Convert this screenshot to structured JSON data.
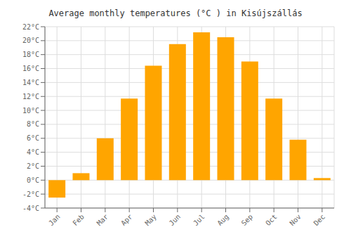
{
  "chart_data": {
    "type": "bar",
    "title": "Average monthly temperatures (°C ) in Kisújszállás",
    "categories": [
      "Jan",
      "Feb",
      "Mar",
      "Apr",
      "May",
      "Jun",
      "Jul",
      "Aug",
      "Sep",
      "Oct",
      "Nov",
      "Dec"
    ],
    "values": [
      -2.5,
      1.0,
      6.0,
      11.7,
      16.4,
      19.5,
      21.2,
      20.5,
      17.0,
      11.7,
      5.8,
      0.3
    ],
    "color": "#FFA500",
    "ylim": [
      -4,
      22
    ],
    "yticks": [
      {
        "value": -4,
        "label": "-4°C"
      },
      {
        "value": -2,
        "label": "-2°C"
      },
      {
        "value": 0,
        "label": "0°C"
      },
      {
        "value": 2,
        "label": "2°C"
      },
      {
        "value": 4,
        "label": "4°C"
      },
      {
        "value": 6,
        "label": "6°C"
      },
      {
        "value": 8,
        "label": "8°C"
      },
      {
        "value": 10,
        "label": "10°C"
      },
      {
        "value": 12,
        "label": "12°C"
      },
      {
        "value": 14,
        "label": "14°C"
      },
      {
        "value": 16,
        "label": "16°C"
      },
      {
        "value": 18,
        "label": "18°C"
      },
      {
        "value": 20,
        "label": "20°C"
      },
      {
        "value": 22,
        "label": "22°C"
      }
    ],
    "grid": true
  }
}
